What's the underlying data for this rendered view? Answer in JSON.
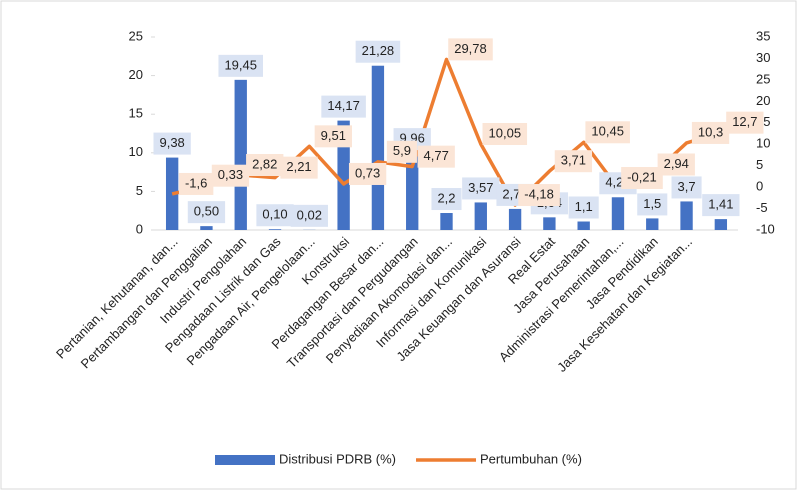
{
  "chart_data": {
    "type": "bar_line",
    "categories": [
      "Pertanian, Kehutanan, dan...",
      "Pertambangan dan Penggalian",
      "Industri Pengolahan",
      "Pengadaan Listrik dan Gas",
      "Pengadaan Air, Pengelolaan...",
      "Konstruksi",
      "Perdagangan Besar dan...",
      "Transportasi dan Pergudangan",
      "Penyediaan Akomodasi dan...",
      "Informasi dan Komunikasi",
      "Jasa Keuangan dan Asuransi",
      "Real Estat",
      "Jasa Perusahaan",
      "Administrasi Pemerintahan,...",
      "Jasa Pendidikan",
      "Jasa Kesehatan dan Kegiatan...",
      null
    ],
    "series": [
      {
        "name": "Distribusi PDRB (%)",
        "color": "#4472c4",
        "type": "bar",
        "values": [
          9.38,
          0.5,
          19.45,
          0.1,
          0.02,
          14.17,
          21.28,
          9.96,
          2.2,
          3.57,
          2.73,
          1.64,
          1.1,
          4.24,
          1.5,
          3.7,
          1.41
        ],
        "value_labels": [
          "9,38",
          "0,50",
          "19,45",
          "0,10",
          "0,02",
          "14,17",
          "21,28",
          "9,96",
          "2,2",
          "3,57",
          "2,73",
          "1,64",
          "1,1",
          "4,24",
          "1,5",
          "3,7",
          "1,41"
        ]
      },
      {
        "name": "Pertumbuhan (%)",
        "color": "#ed7d31",
        "type": "line",
        "axis": "y2",
        "values": [
          -1.6,
          0.33,
          2.82,
          2.21,
          9.51,
          0.73,
          5.9,
          4.77,
          29.78,
          10.05,
          -4.18,
          3.71,
          10.45,
          -0.21,
          2.94,
          10.3,
          12.7
        ],
        "value_labels": [
          "-1,6",
          "0,33",
          "2,82",
          "2,21",
          "9,51",
          "0,73",
          "5,9",
          "4,77",
          "29,78",
          "10,05",
          "-4,18",
          "3,71",
          "10,45",
          "-0,21",
          "2,94",
          "10,3",
          "12,7"
        ]
      }
    ],
    "ylim": [
      0,
      25
    ],
    "yticks": [
      0,
      5,
      10,
      15,
      20,
      25
    ],
    "y2lim": [
      -10,
      35
    ],
    "y2ticks": [
      -10,
      -5,
      0,
      5,
      10,
      15,
      20,
      25,
      30,
      35
    ],
    "legend": "bottom"
  }
}
